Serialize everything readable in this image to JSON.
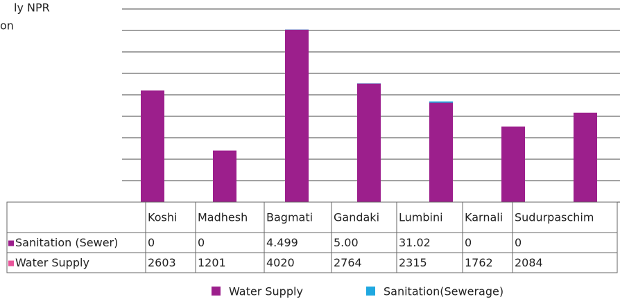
{
  "chart_data": {
    "type": "bar",
    "stacked": true,
    "title_lines": [
      "ly NPR",
      "on"
    ],
    "categories": [
      "Koshi",
      "Madhesh",
      "Bagmati",
      "Gandaki",
      "Lumbini",
      "Karnali",
      "Sudurpaschim"
    ],
    "series": [
      {
        "name": "Water Supply",
        "table_name": "Water Supply",
        "color": "#9c1f8c",
        "key_color": "#e8559a",
        "values": [
          2603,
          1201,
          4020,
          2764,
          2315,
          1762,
          2084
        ]
      },
      {
        "name": "Sanitation(Sewerage)",
        "table_name": "Sanitation (Sewer)",
        "color": "#1fa8e0",
        "key_color": "#9c1f8c",
        "values": [
          0,
          0,
          4.499,
          5,
          31.02,
          0,
          0
        ],
        "value_labels": [
          "0",
          "0",
          "4.499",
          "5.00",
          "31.02",
          "0",
          "0"
        ]
      }
    ],
    "ylim": [
      0,
      4500
    ],
    "yticks": [
      0,
      500,
      1000,
      1500,
      2000,
      2500,
      3000,
      3500,
      4000,
      4500
    ],
    "grid": true
  }
}
